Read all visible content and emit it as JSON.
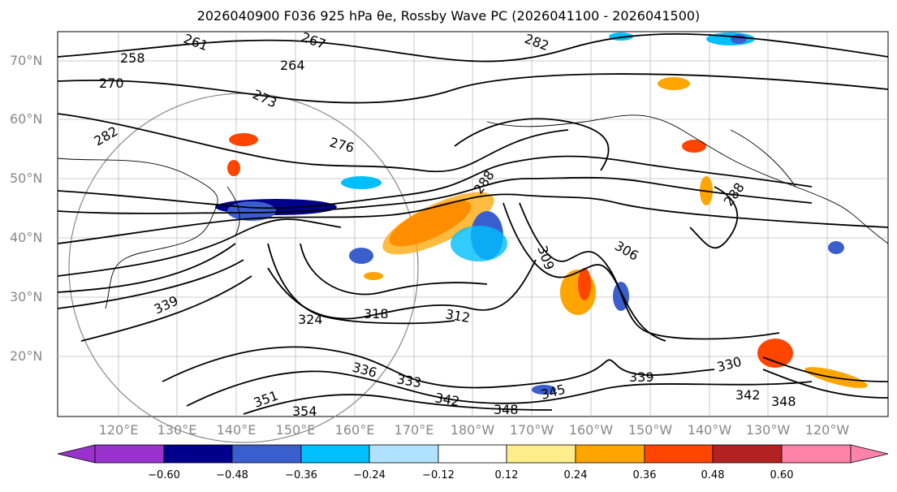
{
  "title": "2026040900 F036 925 hPa θe, Rossby Wave PC (2026041100 - 2026041500)",
  "lat_labels": [
    "70°N",
    "60°N",
    "50°N",
    "40°N",
    "30°N",
    "20°N"
  ],
  "lon_labels": [
    "120°E",
    "130°E",
    "140°E",
    "150°E",
    "160°E",
    "170°E",
    "180°W",
    "170°W",
    "160°W",
    "150°W",
    "140°W",
    "130°W",
    "120°W"
  ],
  "contour_labels": [
    "261",
    "267",
    "258",
    "264",
    "270",
    "273",
    "276",
    "282",
    "282",
    "288",
    "288",
    "306",
    "309",
    "312",
    "318",
    "324",
    "330",
    "333",
    "336",
    "339",
    "339",
    "342",
    "342",
    "345",
    "348",
    "348",
    "351",
    "354"
  ],
  "colorbar": {
    "ticks": [
      "−0.60",
      "−0.48",
      "−0.36",
      "−0.24",
      "−0.12",
      "0.12",
      "0.24",
      "0.36",
      "0.48",
      "0.60"
    ],
    "colors": [
      "#9932cc",
      "#00008b",
      "#3a5fcd",
      "#00bfff",
      "#b0e2ff",
      "#ffffff",
      "#ffec8b",
      "#ffa500",
      "#ff4500",
      "#b22222",
      "#ff82ab"
    ]
  }
}
